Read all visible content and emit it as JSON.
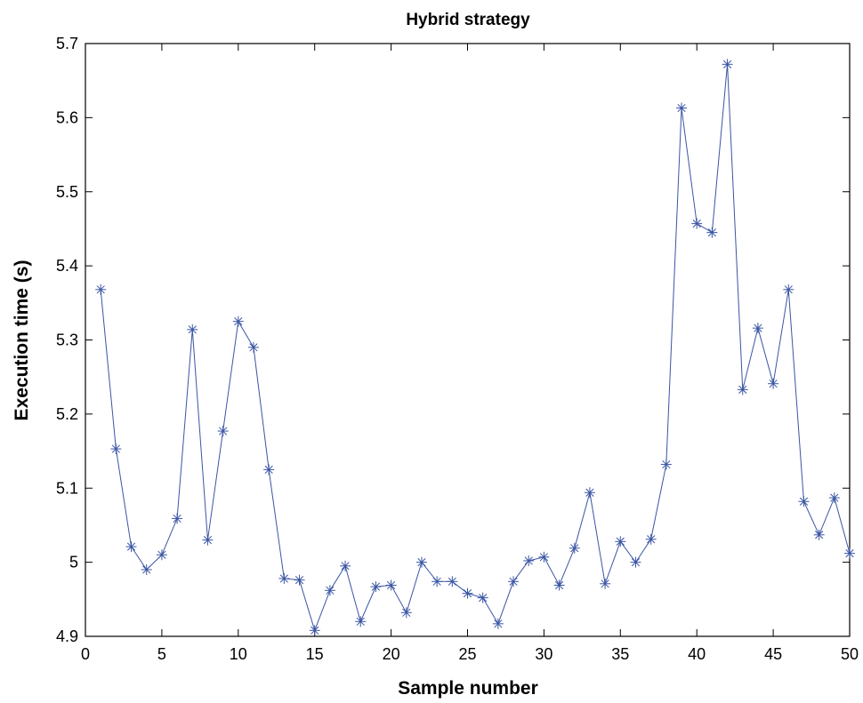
{
  "chart_data": {
    "type": "line",
    "title": "Hybrid strategy",
    "xlabel": "Sample number",
    "ylabel": "Execution time (s)",
    "xlim": [
      0,
      50
    ],
    "ylim": [
      4.9,
      5.7
    ],
    "xticks": [
      0,
      5,
      10,
      15,
      20,
      25,
      30,
      35,
      40,
      45,
      50
    ],
    "xtick_labels": [
      "0",
      "5",
      "10",
      "15",
      "20",
      "25",
      "30",
      "35",
      "40",
      "45",
      "50"
    ],
    "yticks": [
      4.9,
      5.0,
      5.1,
      5.2,
      5.3,
      5.4,
      5.5,
      5.6,
      5.7
    ],
    "ytick_labels": [
      "4.9",
      "5",
      "5.1",
      "5.2",
      "5.3",
      "5.4",
      "5.5",
      "5.6",
      "5.7"
    ],
    "grid": false,
    "marker": "asterisk",
    "color": "#3a55a4",
    "series": [
      {
        "x": [
          1,
          2,
          3,
          4,
          5,
          6,
          7,
          8,
          9,
          10,
          11,
          12,
          13,
          14,
          15,
          16,
          17,
          18,
          19,
          20,
          21,
          22,
          23,
          24,
          25,
          26,
          27,
          28,
          29,
          30,
          31,
          32,
          33,
          34,
          35,
          36,
          37,
          38,
          39,
          40,
          41,
          42,
          43,
          44,
          45,
          46,
          47,
          48,
          49,
          50
        ],
        "values": [
          5.368,
          5.153,
          5.021,
          4.99,
          5.01,
          5.059,
          5.314,
          5.03,
          5.177,
          5.325,
          5.29,
          5.125,
          4.978,
          4.976,
          4.908,
          4.962,
          4.995,
          4.92,
          4.967,
          4.969,
          4.932,
          5.0,
          4.974,
          4.974,
          4.958,
          4.952,
          4.917,
          4.974,
          5.002,
          5.007,
          4.969,
          5.019,
          5.094,
          4.971,
          5.028,
          5.0,
          5.031,
          5.132,
          5.613,
          5.457,
          5.445,
          5.672,
          5.233,
          5.316,
          5.241,
          5.368,
          5.082,
          5.037,
          5.087,
          5.012
        ]
      }
    ]
  }
}
